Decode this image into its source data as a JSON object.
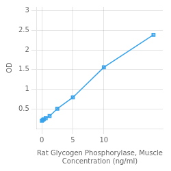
{
  "chart_data": {
    "type": "line",
    "x": [
      0.0,
      0.156,
      0.313,
      0.625,
      1.25,
      2.5,
      5.0,
      10.0,
      18.0
    ],
    "values": [
      0.198,
      0.218,
      0.236,
      0.262,
      0.318,
      0.506,
      0.793,
      1.56,
      2.39
    ],
    "xlabel": "Rat Glycogen Phosphorylase, Muscle\nConcentration (ng/ml)",
    "ylabel": "OD",
    "xlim": [
      -0.8,
      19.5
    ],
    "ylim": [
      0.0,
      3.1
    ],
    "xticks": [
      0,
      5,
      10
    ],
    "yticks": [
      0.5,
      1.0,
      1.5,
      2.0,
      2.5,
      3.0
    ],
    "marker": "square",
    "grid": true
  }
}
